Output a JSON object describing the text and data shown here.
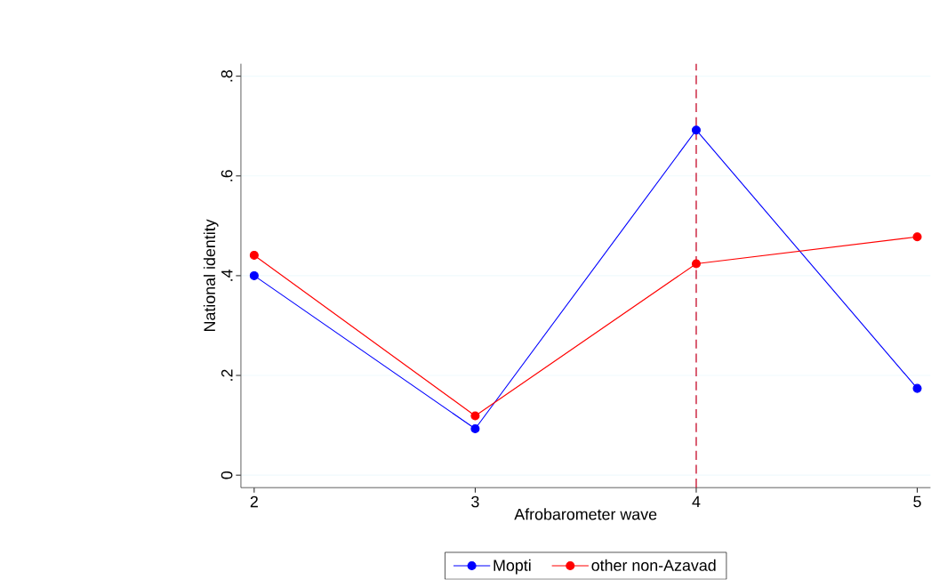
{
  "chart_data": {
    "type": "line",
    "xlabel": "Afrobarometer wave",
    "ylabel": "National identity",
    "x": [
      2,
      3,
      4,
      5
    ],
    "series": [
      {
        "name": "Mopti",
        "color": "#0000ff",
        "values": [
          0.4,
          0.093,
          0.692,
          0.174
        ]
      },
      {
        "name": "other non-Azavad",
        "color": "#ff0000",
        "values": [
          0.441,
          0.119,
          0.424,
          0.478
        ]
      }
    ],
    "xlim": [
      1.94,
      5.06
    ],
    "ylim": [
      -0.025,
      0.825
    ],
    "xticks": [
      2,
      3,
      4,
      5
    ],
    "yticks": [
      0,
      {
        "value": 0.2,
        "label": ".2"
      },
      {
        "value": 0.4,
        "label": ".4"
      },
      {
        "value": 0.6,
        "label": ".6"
      },
      {
        "value": 0.8,
        "label": ".8"
      }
    ],
    "ref_lines": [
      {
        "axis": "x",
        "value": 4,
        "color": "#c8102e",
        "line_style": "dashed"
      }
    ],
    "grid": "y",
    "legend": "bottom",
    "marker": "circle",
    "line_style": "solid"
  }
}
